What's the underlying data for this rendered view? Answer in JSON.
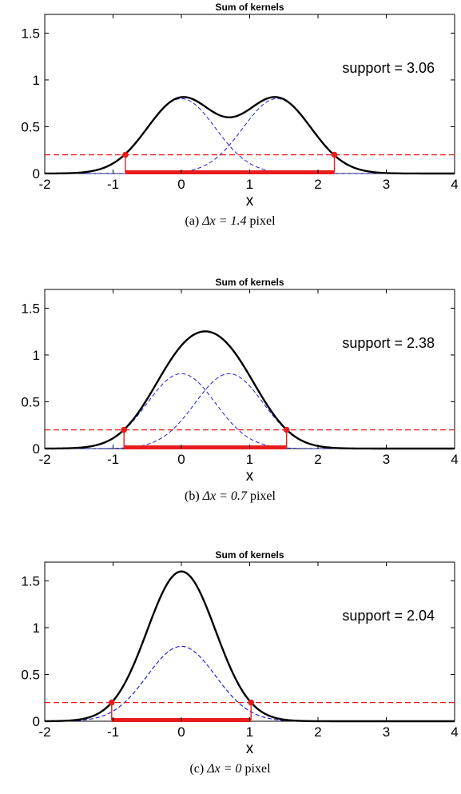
{
  "chart_data": [
    {
      "type": "line",
      "title": "Sum of kernels",
      "xlabel": "x",
      "ylabel": "",
      "xlim": [
        -2,
        4
      ],
      "ylim": [
        0,
        1.7
      ],
      "xticks": [
        "-2",
        "-1",
        "0",
        "1",
        "2",
        "3",
        "4"
      ],
      "yticks": [
        "0",
        "0.5",
        "1",
        "1.5"
      ],
      "annotation": "support = 3.06",
      "caption_prefix": "(a) ",
      "caption_math": "Δx = 1.4",
      "caption_suffix": " pixel",
      "kernel_centers": [
        0,
        1.4
      ],
      "kernel_peak": 0.8,
      "kernel_sigma": 0.5,
      "threshold": 0.2,
      "support_range": [
        -0.82,
        2.24
      ],
      "colors": {
        "sum": "#000000",
        "kernel": "#1f1fd6",
        "threshold": "#e81c1c"
      }
    },
    {
      "type": "line",
      "title": "Sum of kernels",
      "xlabel": "x",
      "ylabel": "",
      "xlim": [
        -2,
        4
      ],
      "ylim": [
        0,
        1.7
      ],
      "xticks": [
        "-2",
        "-1",
        "0",
        "1",
        "2",
        "3",
        "4"
      ],
      "yticks": [
        "0",
        "0.5",
        "1",
        "1.5"
      ],
      "annotation": "support = 2.38",
      "caption_prefix": "(b) ",
      "caption_math": "Δx = 0.7",
      "caption_suffix": " pixel",
      "kernel_centers": [
        0,
        0.7
      ],
      "kernel_peak": 0.8,
      "kernel_sigma": 0.5,
      "threshold": 0.2,
      "support_range": [
        -0.84,
        1.54
      ],
      "colors": {
        "sum": "#000000",
        "kernel": "#1f1fd6",
        "threshold": "#e81c1c"
      }
    },
    {
      "type": "line",
      "title": "Sum of kernels",
      "xlabel": "x",
      "ylabel": "",
      "xlim": [
        -2,
        4
      ],
      "ylim": [
        0,
        1.7
      ],
      "xticks": [
        "-2",
        "-1",
        "0",
        "1",
        "2",
        "3",
        "4"
      ],
      "yticks": [
        "0",
        "0.5",
        "1",
        "1.5"
      ],
      "annotation": "support = 2.04",
      "caption_prefix": "(c) ",
      "caption_math": "Δx = 0",
      "caption_suffix": " pixel",
      "kernel_centers": [
        0,
        0
      ],
      "kernel_peak": 0.8,
      "kernel_sigma": 0.5,
      "threshold": 0.2,
      "support_range": [
        -1.02,
        1.02
      ],
      "colors": {
        "sum": "#000000",
        "kernel": "#1f1fd6",
        "threshold": "#e81c1c"
      }
    }
  ]
}
